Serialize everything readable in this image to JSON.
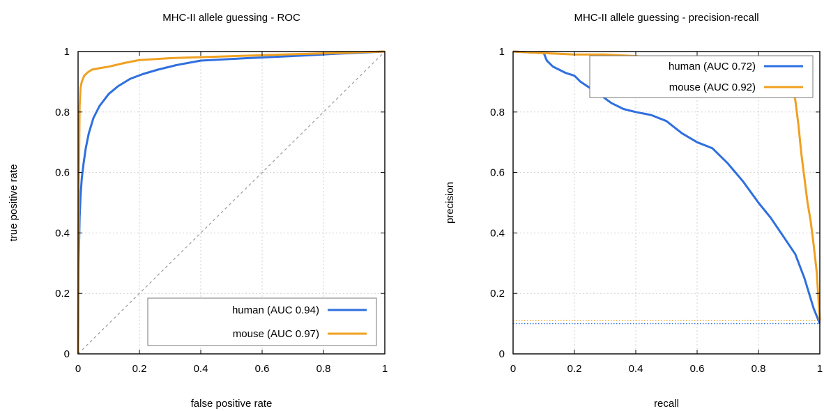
{
  "chart_data": [
    {
      "type": "line",
      "title": "MHC-II allele guessing - ROC",
      "xlabel": "false positive rate",
      "ylabel": "true positive rate",
      "xlim": [
        0,
        1
      ],
      "ylim": [
        0,
        1
      ],
      "xticks": [
        "0",
        "0.2",
        "0.4",
        "0.6",
        "0.8",
        "1"
      ],
      "yticks": [
        "0",
        "0.2",
        "0.4",
        "0.6",
        "0.8",
        "1"
      ],
      "grid": true,
      "legend_position": "bottom-right",
      "series": [
        {
          "name": "human (AUC 0.94)",
          "color": "#2f6fdf",
          "x": [
            0,
            0.002,
            0.005,
            0.008,
            0.012,
            0.018,
            0.025,
            0.035,
            0.05,
            0.07,
            0.1,
            0.13,
            0.17,
            0.21,
            0.26,
            0.32,
            0.4,
            0.55,
            0.7,
            0.85,
            1.0
          ],
          "y": [
            0,
            0.3,
            0.45,
            0.52,
            0.58,
            0.63,
            0.68,
            0.73,
            0.78,
            0.82,
            0.86,
            0.885,
            0.91,
            0.925,
            0.94,
            0.955,
            0.97,
            0.978,
            0.985,
            0.993,
            1.0
          ]
        },
        {
          "name": "mouse (AUC 0.97)",
          "color": "#f0a020",
          "x": [
            0,
            0.002,
            0.005,
            0.008,
            0.012,
            0.02,
            0.03,
            0.045,
            0.07,
            0.1,
            0.15,
            0.2,
            0.3,
            0.45,
            0.6,
            0.8,
            1.0
          ],
          "y": [
            0,
            0.5,
            0.82,
            0.88,
            0.9,
            0.92,
            0.93,
            0.94,
            0.945,
            0.95,
            0.962,
            0.972,
            0.978,
            0.983,
            0.988,
            0.994,
            1.0
          ]
        },
        {
          "name": "",
          "color": "#999999",
          "style": "dashed",
          "x": [
            0,
            1
          ],
          "y": [
            0,
            1
          ]
        }
      ],
      "legend": [
        {
          "label": "human (AUC 0.94)",
          "color": "#2f6fdf"
        },
        {
          "label": "mouse (AUC 0.97)",
          "color": "#f0a020"
        }
      ]
    },
    {
      "type": "line",
      "title": "MHC-II allele guessing - precision-recall",
      "xlabel": "recall",
      "ylabel": "precision",
      "xlim": [
        0,
        1
      ],
      "ylim": [
        0,
        1
      ],
      "xticks": [
        "0",
        "0.2",
        "0.4",
        "0.6",
        "0.8",
        "1"
      ],
      "yticks": [
        "0",
        "0.2",
        "0.4",
        "0.6",
        "0.8",
        "1"
      ],
      "grid": true,
      "legend_position": "top-right",
      "series": [
        {
          "name": "human (AUC 0.72)",
          "color": "#2f6fdf",
          "x": [
            0,
            0.1,
            0.11,
            0.13,
            0.15,
            0.17,
            0.2,
            0.22,
            0.25,
            0.28,
            0.32,
            0.36,
            0.4,
            0.45,
            0.5,
            0.55,
            0.6,
            0.65,
            0.7,
            0.75,
            0.8,
            0.84,
            0.88,
            0.92,
            0.95,
            0.98,
            1.0
          ],
          "y": [
            1.0,
            0.995,
            0.97,
            0.95,
            0.94,
            0.93,
            0.92,
            0.9,
            0.88,
            0.86,
            0.83,
            0.81,
            0.8,
            0.79,
            0.77,
            0.73,
            0.7,
            0.68,
            0.63,
            0.57,
            0.5,
            0.45,
            0.39,
            0.33,
            0.25,
            0.15,
            0.1
          ]
        },
        {
          "name": "mouse (AUC 0.92)",
          "color": "#f0a020",
          "x": [
            0,
            0.1,
            0.2,
            0.3,
            0.4,
            0.5,
            0.6,
            0.7,
            0.8,
            0.85,
            0.88,
            0.9,
            0.91,
            0.92,
            0.93,
            0.94,
            0.95,
            0.96,
            0.97,
            0.98,
            0.99,
            1.0
          ],
          "y": [
            1.0,
            0.995,
            0.99,
            0.99,
            0.985,
            0.975,
            0.96,
            0.95,
            0.94,
            0.93,
            0.91,
            0.9,
            0.88,
            0.84,
            0.76,
            0.66,
            0.58,
            0.5,
            0.44,
            0.36,
            0.27,
            0.11
          ]
        }
      ],
      "baselines": [
        {
          "y": 0.11,
          "color": "#f0a020",
          "style": "dotted"
        },
        {
          "y": 0.1,
          "color": "#2f6fdf",
          "style": "dotted"
        }
      ],
      "legend": [
        {
          "label": "human (AUC 0.72)",
          "color": "#2f6fdf"
        },
        {
          "label": "mouse (AUC 0.92)",
          "color": "#f0a020"
        }
      ]
    }
  ]
}
